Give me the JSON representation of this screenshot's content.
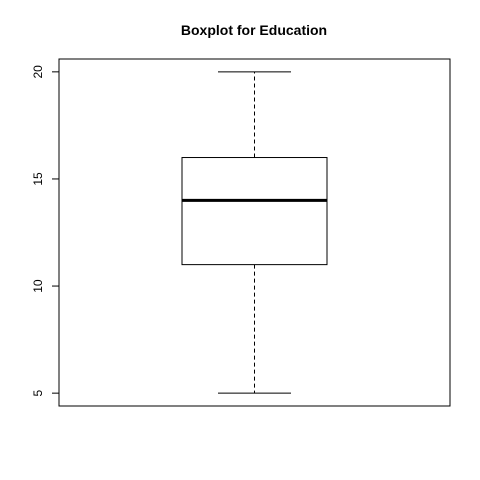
{
  "chart_data": {
    "type": "boxplot",
    "title": "Boxplot for Education",
    "xlabel": "",
    "ylabel": "",
    "ylim": [
      4.4,
      20.6
    ],
    "yticks": [
      5,
      10,
      15,
      20
    ],
    "ytick_labels": [
      "5",
      "10",
      "15",
      "20"
    ],
    "grid": false,
    "legend": "none",
    "box": {
      "min": 5,
      "q1": 11,
      "median": 14,
      "q3": 16,
      "max": 20
    },
    "colors": {
      "line": "#000000",
      "fill": "#ffffff"
    }
  }
}
